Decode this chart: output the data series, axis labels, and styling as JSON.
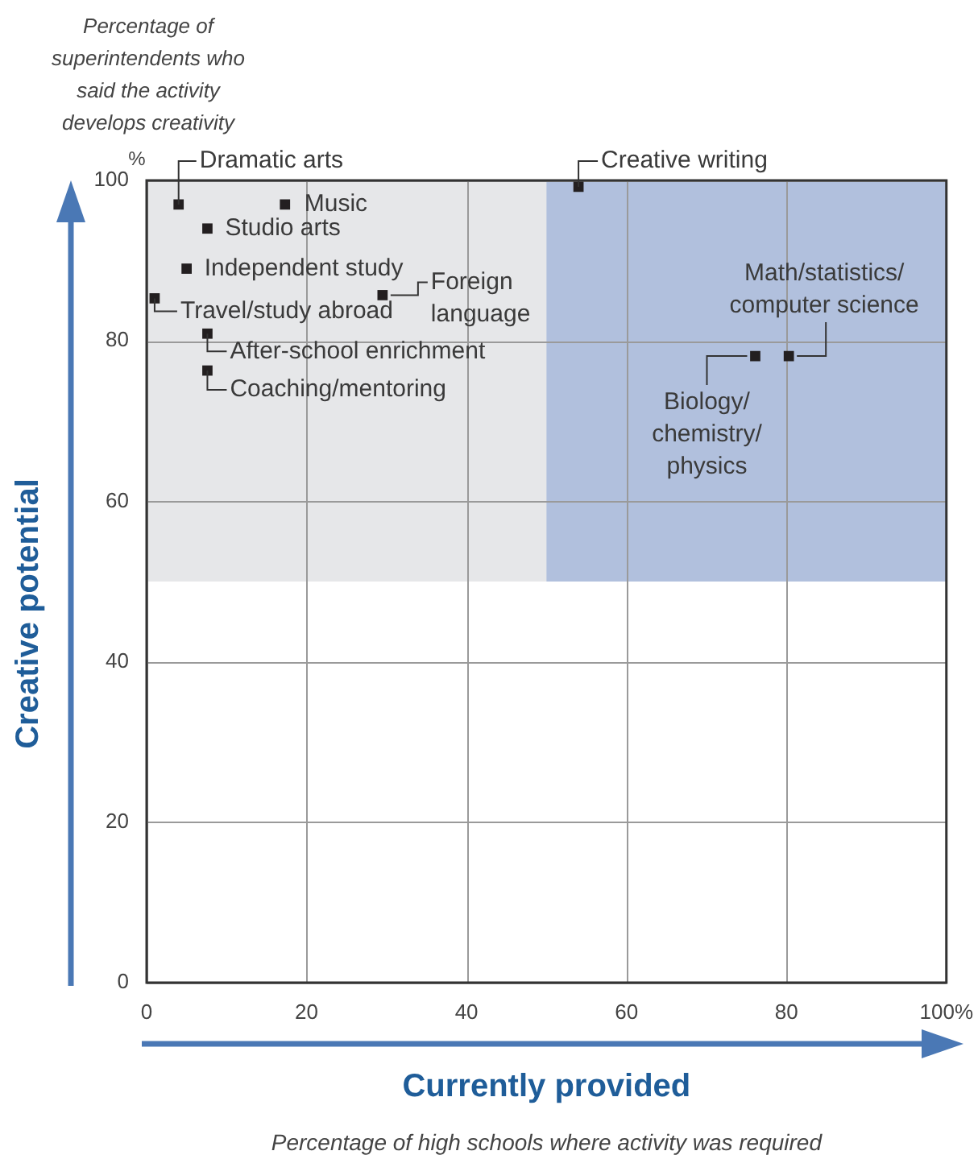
{
  "chart_data": {
    "type": "scatter",
    "xlabel": "Currently provided",
    "ylabel": "Creative potential",
    "x": [
      4.0,
      17.3,
      7.6,
      5.0,
      1.0,
      29.5,
      7.6,
      7.6,
      54.0,
      76.1,
      80.3
    ],
    "values": [
      97.0,
      97.0,
      94.0,
      89.0,
      85.3,
      85.7,
      80.9,
      76.3,
      99.2,
      78.1,
      78.1
    ],
    "color": "#231f20",
    "marker": "square",
    "xlim": [
      0,
      100
    ],
    "ylim": [
      0,
      100
    ],
    "xticks": [
      0,
      20,
      40,
      60,
      80,
      {
        "value": 100,
        "label": "100%"
      }
    ],
    "yticks": [
      0,
      20,
      40,
      60,
      80,
      100
    ],
    "grid": true,
    "bands": [
      {
        "axis": "y",
        "from": 50,
        "to": 100,
        "color": "#e6e7e9"
      },
      {
        "axis": "x",
        "from": 50,
        "to": 100,
        "color": "#b1c0dd"
      }
    ],
    "annotations": [
      "Percentage of superintendents who said the activity develops creativity",
      "%",
      "Percentage of high schools where activity was required",
      {
        "text": "Dramatic arts",
        "x": 4.0,
        "y": 97.0
      },
      {
        "text": "Music",
        "x": 17.3,
        "y": 97.0
      },
      {
        "text": "Studio arts",
        "x": 7.6,
        "y": 94.0
      },
      {
        "text": "Independent study",
        "x": 5.0,
        "y": 89.0
      },
      {
        "text": "Travel/study abroad",
        "x": 1.0,
        "y": 85.3
      },
      {
        "text": "Foreign language",
        "x": 29.5,
        "y": 85.7
      },
      {
        "text": "After-school enrichment",
        "x": 7.6,
        "y": 80.9
      },
      {
        "text": "Coaching/mentoring",
        "x": 7.6,
        "y": 76.3
      },
      {
        "text": "Creative writing",
        "x": 54.0,
        "y": 99.2
      },
      {
        "text": "Biology/ chemistry/ physics",
        "x": 76.1,
        "y": 78.1
      },
      {
        "text": "Math/statistics/ computer science",
        "x": 80.3,
        "y": 78.1
      }
    ]
  }
}
